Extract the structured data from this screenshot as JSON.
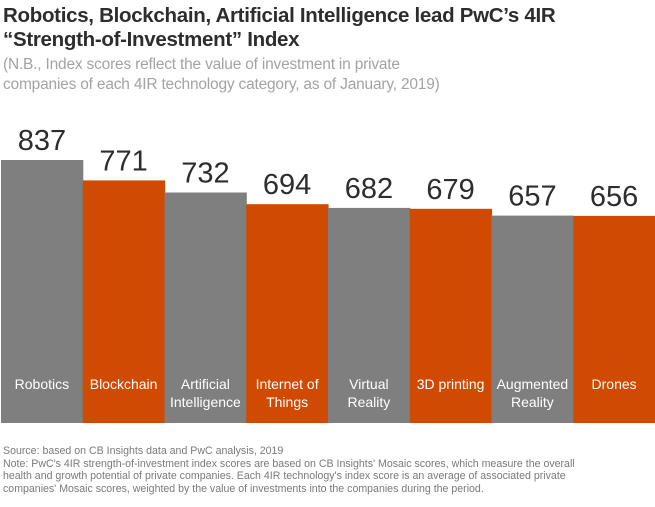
{
  "chart_data": {
    "type": "bar",
    "title": "Robotics, Blockchain, Artificial Intelligence lead PwC’s 4IR “Strength-of-Investment” Index",
    "subtitle": "(N.B., Index scores reflect the value of investment in private companies of each 4IR technology category, as of January, 2019)",
    "title_lines": [
      "Robotics, Blockchain, Artificial Intelligence lead PwC’s 4IR",
      "“Strength-of-Investment” Index"
    ],
    "subtitle_lines": [
      "(N.B., Index scores reflect the value of investment in private",
      "companies of each 4IR technology category, as of January, 2019)"
    ],
    "categories": [
      "Robotics",
      "Blockchain",
      "Artificial Intelligence",
      "Internet of Things",
      "Virtual Reality",
      "3D printing",
      "Augmented Reality",
      "Drones"
    ],
    "category_label_lines": [
      [
        "Robotics"
      ],
      [
        "Blockchain"
      ],
      [
        "Artificial",
        "Intelligence"
      ],
      [
        "Internet of",
        "Things"
      ],
      [
        "Virtual",
        "Reality"
      ],
      [
        "3D printing"
      ],
      [
        "Augmented",
        "Reality"
      ],
      [
        "Drones"
      ]
    ],
    "values": [
      837,
      771,
      732,
      694,
      682,
      679,
      657,
      656
    ],
    "bar_colors": [
      "#7f7f7f",
      "#d04a02",
      "#7f7f7f",
      "#d04a02",
      "#7f7f7f",
      "#d04a02",
      "#7f7f7f",
      "#d04a02"
    ],
    "xlabel": "",
    "ylabel": "",
    "ylim": [
      -14,
      837
    ],
    "grid": false,
    "legend": "none",
    "data_labels": true
  },
  "footer": {
    "source": "Source: based on CB Insights data and PwC analysis, 2019",
    "note_lines": [
      "Note: PwC's 4IR strength-of-investment index scores are based on CB Insights' Mosaic scores, which measure the overall",
      "health and growth potential of private companies. Each 4IR technology's index score is an average of associated private",
      "companies' Mosaic scores, weighted by the value of investments into the companies during the period."
    ]
  },
  "colors": {
    "gray": "#7f7f7f",
    "orange": "#d04a02",
    "title": "#2d2d2d",
    "subtitle": "#a3a3a3",
    "value_label": "#2d2d2d",
    "bar_label": "#ffffff"
  }
}
